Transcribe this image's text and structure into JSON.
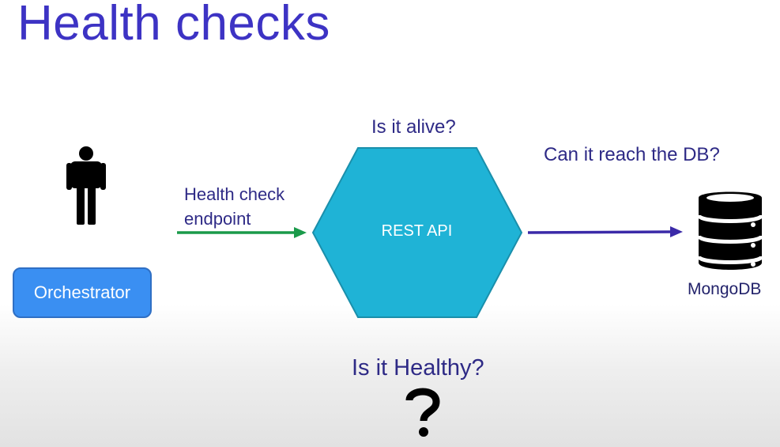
{
  "title": "Health checks",
  "labels": {
    "is_alive": "Is it alive?",
    "reach_db": "Can it reach the DB?",
    "health_check_line1": "Health check",
    "health_check_line2": "endpoint",
    "is_healthy": "Is it Healthy?"
  },
  "nodes": {
    "orchestrator": "Orchestrator",
    "rest_api": "REST API",
    "mongodb": "MongoDB"
  },
  "icons": {
    "person": "person-icon",
    "database": "database-icon",
    "question": "question-mark-icon"
  },
  "colors": {
    "title": "#3d33c4",
    "label": "#2e2a86",
    "hexagon": "#1fb3d6",
    "orchestrator": "#3a8ff2",
    "arrow_endpoint": "#1a9a4a",
    "arrow_db": "#3b2aa8"
  }
}
